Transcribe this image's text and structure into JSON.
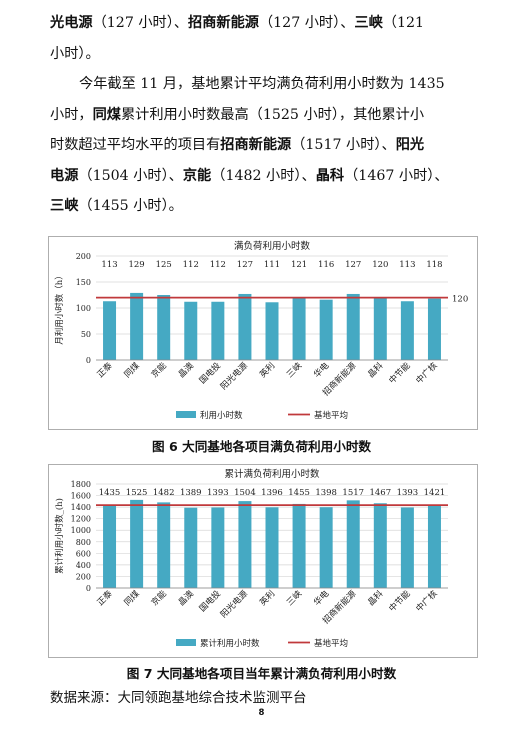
{
  "paragraph1": {
    "line1": [
      {
        "t": "光电源",
        "b": true
      },
      {
        "t": "（127 小时）、",
        "b": false
      },
      {
        "t": "招商新能源",
        "b": true
      },
      {
        "t": "（127 小时）、",
        "b": false
      },
      {
        "t": "三峡",
        "b": true
      },
      {
        "t": "（121",
        "b": false
      }
    ],
    "line2": [
      {
        "t": "小时）。",
        "b": false
      }
    ]
  },
  "paragraph2": {
    "line1": [
      {
        "t": "今年截至 11 月，基地累计平均满负荷利用小时数为 1435",
        "b": false
      }
    ],
    "line2": [
      {
        "t": "小时，",
        "b": false
      },
      {
        "t": "同煤",
        "b": true
      },
      {
        "t": "累计利用小时数最高（1525 小时），其他累计小",
        "b": false
      }
    ],
    "line3": [
      {
        "t": "时数超过平均水平的项目有",
        "b": false
      },
      {
        "t": "招商新能源",
        "b": true
      },
      {
        "t": "（1517 小时）、",
        "b": false
      },
      {
        "t": "阳光",
        "b": true
      }
    ],
    "line4": [
      {
        "t": "电源",
        "b": true
      },
      {
        "t": "（1504 小时）、",
        "b": false
      },
      {
        "t": "京能",
        "b": true
      },
      {
        "t": "（1482 小时）、",
        "b": false
      },
      {
        "t": "晶科",
        "b": true
      },
      {
        "t": "（1467 小时）、",
        "b": false
      }
    ],
    "line5": [
      {
        "t": "三峡",
        "b": true
      },
      {
        "t": "（1455 小时）。",
        "b": false
      }
    ]
  },
  "figure6": {
    "caption": "图 6    大同基地各项目满负荷利用小时数"
  },
  "figure7": {
    "caption": "图 7    大同基地各项目当年累计满负荷利用小时数"
  },
  "source": "数据来源：大同领跑基地综合技术监测平台",
  "page_number": "8",
  "chart_data": [
    {
      "type": "bar",
      "title": "满负荷利用小时数",
      "ylabel": "月利用小时数（h）",
      "categories": [
        "正泰",
        "同煤",
        "京能",
        "晶澳",
        "国电投",
        "阳光电源",
        "英利",
        "三峡",
        "华电",
        "招商新能源",
        "晶科",
        "中节能",
        "中广核"
      ],
      "series": [
        {
          "name": "利用小时数",
          "values": [
            113,
            129,
            125,
            112,
            112,
            127,
            111,
            121,
            116,
            127,
            120,
            113,
            118
          ]
        }
      ],
      "average": {
        "name": "基地平均",
        "value": 120
      },
      "ylim": [
        0,
        200
      ],
      "yticks": [
        0,
        50,
        100,
        150,
        200
      ],
      "bar_color": "#45A9C3",
      "line_color": "#C0393B",
      "legend": "bottom"
    },
    {
      "type": "bar",
      "title": "累计满负荷利用小时数",
      "ylabel": "累计利用小时数_(h)",
      "categories": [
        "正泰",
        "同煤",
        "京能",
        "晶澳",
        "国电投",
        "阳光电源",
        "英利",
        "三峡",
        "华电",
        "招商新能源",
        "晶科",
        "中节能",
        "中广核"
      ],
      "series": [
        {
          "name": "累计利用小时数",
          "values": [
            1435,
            1525,
            1482,
            1389,
            1393,
            1504,
            1396,
            1455,
            1398,
            1517,
            1467,
            1393,
            1421
          ]
        }
      ],
      "average": {
        "name": "基地平均",
        "value": 1435
      },
      "ylim": [
        0,
        1800
      ],
      "yticks": [
        0,
        200,
        400,
        600,
        800,
        1000,
        1200,
        1400,
        1600,
        1800
      ],
      "bar_color": "#45A9C3",
      "line_color": "#C0393B",
      "legend": "bottom"
    }
  ]
}
